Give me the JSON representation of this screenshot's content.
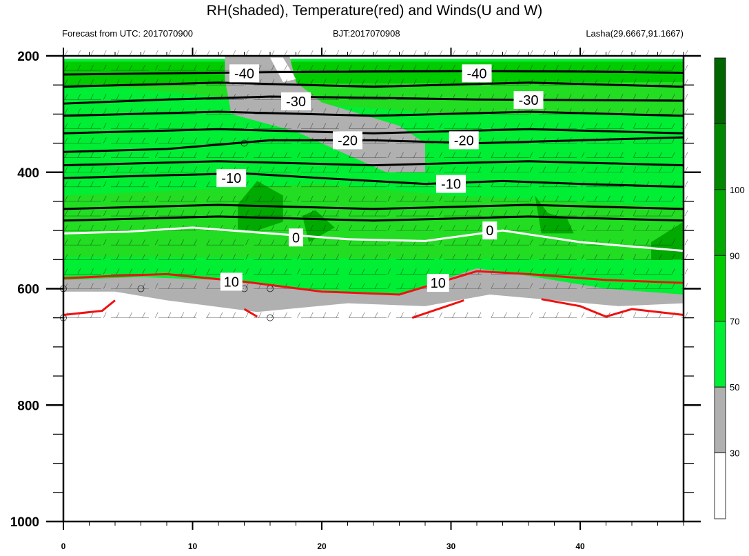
{
  "title": "RH(shaded), Temperature(red) and Winds(U and W)",
  "subtitle_left": "Forecast from UTC: 2017070900",
  "subtitle_mid": "BJT:2017070908",
  "subtitle_right": "Lasha(29.6667,91.1667)",
  "chart_data": {
    "type": "heatmap",
    "x_ticks": [
      "0",
      "10",
      "20",
      "30",
      "40"
    ],
    "y_ticks": [
      "200",
      "400",
      "600",
      "800",
      "1000"
    ],
    "xlim": [
      0,
      48
    ],
    "ylim": [
      200,
      1000
    ],
    "y_inverted": true,
    "colorbar": {
      "levels": [
        "30",
        "50",
        "70",
        "90",
        "100"
      ],
      "colors": [
        "#ffffff",
        "#b0b0b0",
        "#00ee33",
        "#00cc00",
        "#00aa00",
        "#008800",
        "#006600"
      ]
    },
    "temperature_contours": {
      "color_below_0": "#000000",
      "color_zero": "#ffffff",
      "color_above_0": "#ee1111",
      "lines": [
        {
          "value": -40,
          "x": [
            0,
            8,
            16,
            24,
            32,
            40,
            48
          ],
          "p": [
            232,
            230,
            228,
            227,
            226,
            227,
            229
          ]
        },
        {
          "value": -30,
          "x": [
            0,
            8,
            16,
            24,
            32,
            40,
            48
          ],
          "p": [
            282,
            275,
            270,
            272,
            275,
            276,
            277
          ]
        },
        {
          "value": -20,
          "x": [
            0,
            8,
            16,
            24,
            32,
            40,
            48
          ],
          "p": [
            365,
            360,
            345,
            345,
            350,
            345,
            340
          ]
        },
        {
          "value": -10,
          "x": [
            0,
            8,
            14,
            20,
            28,
            34,
            40,
            48
          ],
          "p": [
            410,
            405,
            402,
            410,
            420,
            415,
            420,
            425
          ]
        },
        {
          "value": 0,
          "x": [
            0,
            5,
            10,
            16,
            22,
            28,
            34,
            40,
            48
          ],
          "p": [
            505,
            502,
            495,
            505,
            515,
            518,
            500,
            520,
            535
          ]
        },
        {
          "value": 10,
          "x": [
            0,
            4,
            8,
            14,
            20,
            26,
            32,
            36,
            42,
            48
          ],
          "p": [
            582,
            578,
            575,
            588,
            605,
            610,
            570,
            575,
            585,
            590
          ]
        }
      ],
      "labels": [
        {
          "text": "-40",
          "x": 14,
          "p": 230
        },
        {
          "text": "-40",
          "x": 32,
          "p": 230
        },
        {
          "text": "-30",
          "x": 18,
          "p": 278
        },
        {
          "text": "-30",
          "x": 36,
          "p": 276
        },
        {
          "text": "-20",
          "x": 22,
          "p": 345
        },
        {
          "text": "-20",
          "x": 31,
          "p": 345
        },
        {
          "text": "-10",
          "x": 13,
          "p": 410
        },
        {
          "text": "-10",
          "x": 30,
          "p": 420
        },
        {
          "text": "0",
          "x": 18,
          "p": 512
        },
        {
          "text": "0",
          "x": 33,
          "p": 500
        },
        {
          "text": "10",
          "x": 13,
          "p": 588
        },
        {
          "text": "10",
          "x": 29,
          "p": 590
        }
      ]
    }
  }
}
